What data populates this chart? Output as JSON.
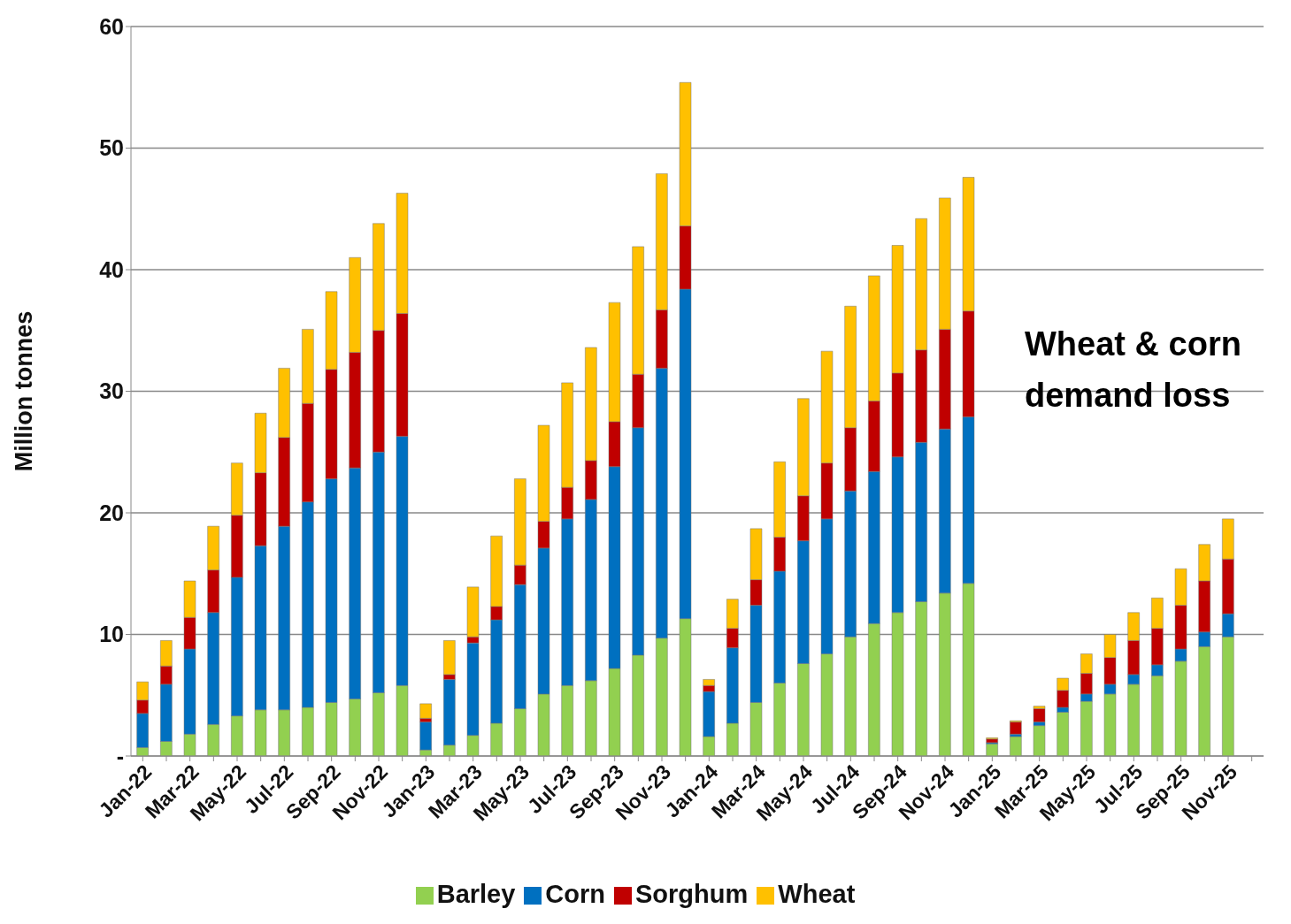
{
  "chart_data": {
    "type": "bar",
    "stacked": true,
    "ylabel": "Million tonnes",
    "categories": [
      "Jan-22",
      null,
      "Mar-22",
      null,
      "May-22",
      null,
      "Jul-22",
      null,
      "Sep-22",
      null,
      "Nov-22",
      null,
      "Jan-23",
      null,
      "Mar-23",
      null,
      "May-23",
      null,
      "Jul-23",
      null,
      "Sep-23",
      null,
      "Nov-23",
      null,
      "Jan-24",
      null,
      "Mar-24",
      null,
      "May-24",
      null,
      "Jul-24",
      null,
      "Sep-24",
      null,
      "Nov-24",
      null,
      "Jan-25",
      null,
      "Mar-25",
      null,
      "May-25",
      null,
      "Jul-25",
      null,
      "Sep-25",
      null,
      "Nov-25",
      null
    ],
    "series": [
      {
        "name": "Barley",
        "color": "#92d050",
        "values": [
          0.7,
          1.2,
          1.8,
          2.6,
          3.3,
          3.8,
          3.8,
          4.0,
          4.4,
          4.7,
          5.2,
          5.8,
          0.5,
          0.9,
          1.7,
          2.7,
          3.9,
          5.1,
          5.8,
          6.2,
          7.2,
          8.3,
          9.7,
          11.3,
          1.6,
          2.7,
          4.4,
          6.0,
          7.6,
          8.4,
          9.8,
          10.9,
          11.8,
          12.7,
          13.4,
          14.2,
          1.0,
          1.6,
          2.5,
          3.6,
          4.5,
          5.1,
          5.9,
          6.6,
          7.8,
          9.0,
          9.8,
          null
        ]
      },
      {
        "name": "Corn",
        "color": "#0070c0",
        "values": [
          2.8,
          4.7,
          7.0,
          9.2,
          11.4,
          13.5,
          15.1,
          16.9,
          18.4,
          19.0,
          19.8,
          20.5,
          2.3,
          5.4,
          7.6,
          8.5,
          10.2,
          12.0,
          13.7,
          14.9,
          16.6,
          18.7,
          22.2,
          27.1,
          3.7,
          6.2,
          8.0,
          9.2,
          10.1,
          11.1,
          12.0,
          12.5,
          12.8,
          13.1,
          13.5,
          13.7,
          0.1,
          0.2,
          0.3,
          0.4,
          0.6,
          0.8,
          0.8,
          0.9,
          1.0,
          1.2,
          1.9,
          null
        ]
      },
      {
        "name": "Sorghum",
        "color": "#c00000",
        "values": [
          1.1,
          1.5,
          2.6,
          3.5,
          5.1,
          6.0,
          7.3,
          8.1,
          9.0,
          9.5,
          10.0,
          10.1,
          0.3,
          0.4,
          0.5,
          1.1,
          1.6,
          2.2,
          2.6,
          3.2,
          3.7,
          4.4,
          4.8,
          5.2,
          0.5,
          1.6,
          2.1,
          2.8,
          3.7,
          4.6,
          5.2,
          5.8,
          6.9,
          7.6,
          8.2,
          8.7,
          0.3,
          1.0,
          1.1,
          1.4,
          1.7,
          2.2,
          2.8,
          3.0,
          3.6,
          4.2,
          4.5,
          null
        ]
      },
      {
        "name": "Wheat",
        "color": "#ffc000",
        "values": [
          1.5,
          2.1,
          3.0,
          3.6,
          4.3,
          4.9,
          5.7,
          6.1,
          6.4,
          7.8,
          8.8,
          9.9,
          1.2,
          2.8,
          4.1,
          5.8,
          7.1,
          7.9,
          8.6,
          9.3,
          9.8,
          10.5,
          11.2,
          11.8,
          0.5,
          2.4,
          4.2,
          6.2,
          8.0,
          9.2,
          10.0,
          10.3,
          10.5,
          10.8,
          10.8,
          11.0,
          0.1,
          0.1,
          0.2,
          1.0,
          1.6,
          1.9,
          2.3,
          2.5,
          3.0,
          3.0,
          3.3,
          null
        ]
      }
    ],
    "ylim": [
      0,
      60
    ],
    "yticks": [
      {
        "value": 0,
        "label": "-"
      },
      10,
      20,
      30,
      40,
      50,
      60
    ],
    "grid": "y",
    "legend": "bottom",
    "annotations": [
      "Wheat & corn demand loss"
    ]
  }
}
